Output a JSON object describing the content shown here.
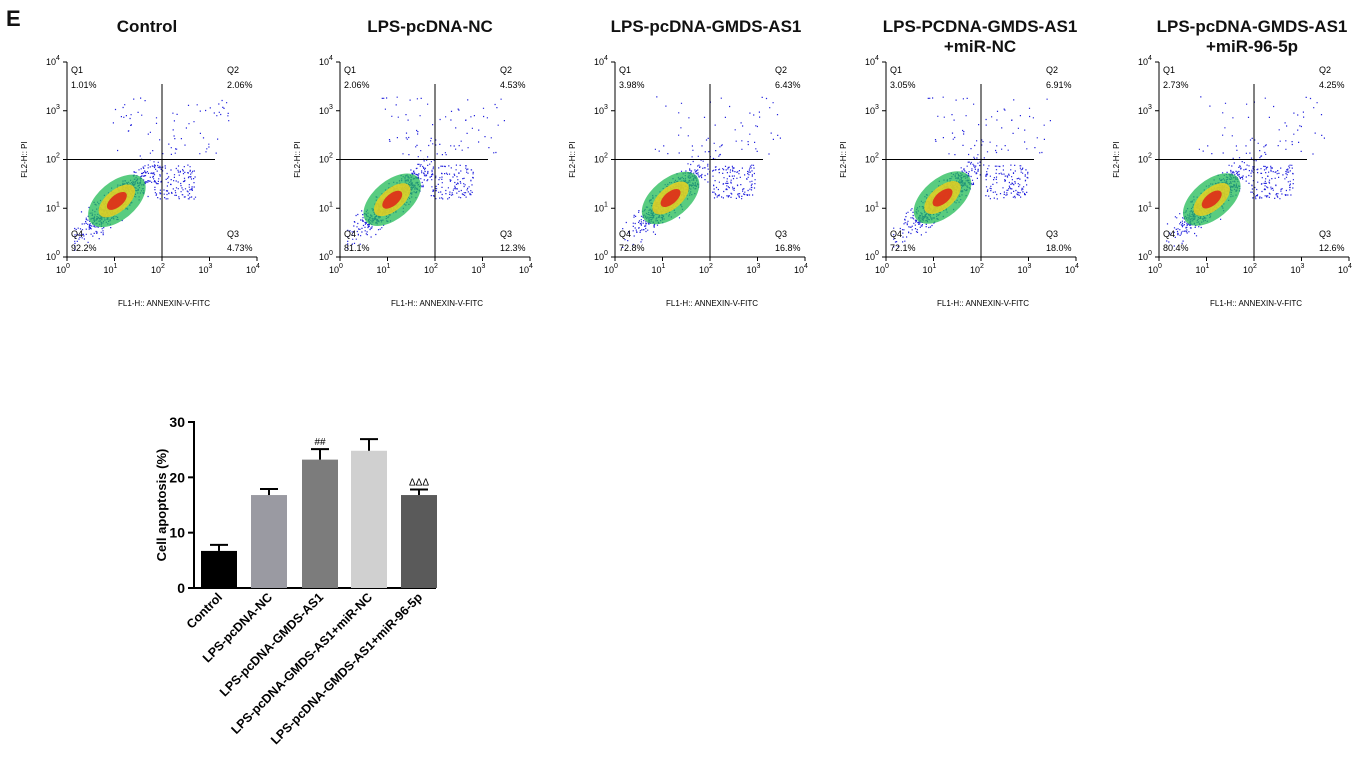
{
  "panel_label": "E",
  "flow_panels": [
    {
      "title": "Control",
      "subtitle": "",
      "q1": "1.01%",
      "q2": "2.06%",
      "q3": "4.73%",
      "q4": "92.2%"
    },
    {
      "title": "LPS-pcDNA-NC",
      "subtitle": "",
      "q1": "2.06%",
      "q2": "4.53%",
      "q3": "12.3%",
      "q4": "81.1%"
    },
    {
      "title": "LPS-pcDNA-GMDS-AS1",
      "subtitle": "",
      "q1": "3.98%",
      "q2": "6.43%",
      "q3": "16.8%",
      "q4": "72.8%"
    },
    {
      "title": "LPS-PCDNA-GMDS-AS1",
      "subtitle": "+miR-NC",
      "q1": "3.05%",
      "q2": "6.91%",
      "q3": "18.0%",
      "q4": "72.1%"
    },
    {
      "title": "LPS-pcDNA-GMDS-AS1",
      "subtitle": "+miR-96-5p",
      "q1": "2.73%",
      "q2": "4.25%",
      "q3": "12.6%",
      "q4": "80.4%"
    }
  ],
  "flow_common": {
    "ylabel": "FL2-H:: PI",
    "xlabel": "FL1-H:: ANNEXIN-V-FITC",
    "quadrant_names": [
      "Q1",
      "Q2",
      "Q3",
      "Q4"
    ],
    "tick_base": "10",
    "tick_exponents": [
      "0",
      "1",
      "2",
      "3",
      "4"
    ],
    "scale": "log",
    "xlim": [
      1,
      10000
    ],
    "ylim": [
      1,
      10000
    ],
    "gate": [
      100,
      100
    ]
  },
  "chart_data": {
    "type": "bar",
    "categories": [
      "Control",
      "LPS-pcDNA-NC",
      "LPS-pcDNA-GMDS-AS1",
      "LPS-pcDNA-GMDS-AS1+miR-NC",
      "LPS-pcDNA-GMDS-AS1+miR-96-5p"
    ],
    "values": [
      6.7,
      16.8,
      23.2,
      24.8,
      16.8
    ],
    "errors": [
      1.1,
      1.1,
      1.9,
      2.1,
      1.0
    ],
    "annotations": [
      "",
      "",
      "##",
      "",
      "ΔΔΔ"
    ],
    "colors": [
      "#000000",
      "#9a9aa2",
      "#7c7c7c",
      "#d0d0d0",
      "#5a5a5a"
    ],
    "ylabel": "Cell apoptosis  (%)",
    "xlabel": "",
    "title": "",
    "ylim": [
      0,
      30
    ],
    "yticks": [
      0,
      10,
      20,
      30
    ]
  }
}
